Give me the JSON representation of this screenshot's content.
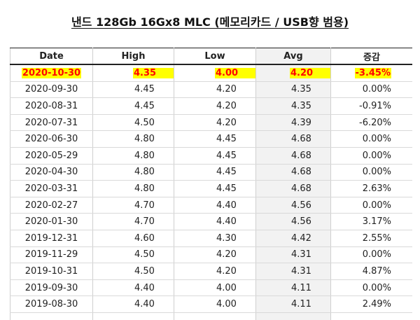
{
  "title": "낸드 128Gb 16Gx8 MLC (메모리카드 / USB향 범용)",
  "columns": {
    "date": "Date",
    "high": "High",
    "low": "Low",
    "avg": "Avg",
    "change": "증감"
  },
  "rows": [
    {
      "date": "2020-10-30",
      "high": "4.35",
      "low": "4.00",
      "avg": "4.20",
      "change": "-3.45%",
      "highlight": true
    },
    {
      "date": "2020-09-30",
      "high": "4.45",
      "low": "4.20",
      "avg": "4.35",
      "change": "0.00%"
    },
    {
      "date": "2020-08-31",
      "high": "4.45",
      "low": "4.20",
      "avg": "4.35",
      "change": "-0.91%"
    },
    {
      "date": "2020-07-31",
      "high": "4.50",
      "low": "4.20",
      "avg": "4.39",
      "change": "-6.20%"
    },
    {
      "date": "2020-06-30",
      "high": "4.80",
      "low": "4.45",
      "avg": "4.68",
      "change": "0.00%"
    },
    {
      "date": "2020-05-29",
      "high": "4.80",
      "low": "4.45",
      "avg": "4.68",
      "change": "0.00%"
    },
    {
      "date": "2020-04-30",
      "high": "4.80",
      "low": "4.45",
      "avg": "4.68",
      "change": "0.00%"
    },
    {
      "date": "2020-03-31",
      "high": "4.80",
      "low": "4.45",
      "avg": "4.68",
      "change": "2.63%"
    },
    {
      "date": "2020-02-27",
      "high": "4.70",
      "low": "4.40",
      "avg": "4.56",
      "change": "0.00%"
    },
    {
      "date": "2020-01-30",
      "high": "4.70",
      "low": "4.40",
      "avg": "4.56",
      "change": "3.17%"
    },
    {
      "date": "2019-12-31",
      "high": "4.60",
      "low": "4.30",
      "avg": "4.42",
      "change": "2.55%"
    },
    {
      "date": "2019-11-29",
      "high": "4.50",
      "low": "4.20",
      "avg": "4.31",
      "change": "0.00%"
    },
    {
      "date": "2019-10-31",
      "high": "4.50",
      "low": "4.20",
      "avg": "4.31",
      "change": "4.87%"
    },
    {
      "date": "2019-09-30",
      "high": "4.40",
      "low": "4.00",
      "avg": "4.11",
      "change": "0.00%"
    },
    {
      "date": "2019-08-30",
      "high": "4.40",
      "low": "4.00",
      "avg": "4.11",
      "change": "2.49%"
    },
    {
      "date": "",
      "high": "",
      "low": "",
      "avg": "",
      "change": ""
    }
  ],
  "colors": {
    "highlight_text": "#ff0000",
    "highlight_bg": "#ffff00",
    "avg_column_bg": "#f2f2f2"
  }
}
